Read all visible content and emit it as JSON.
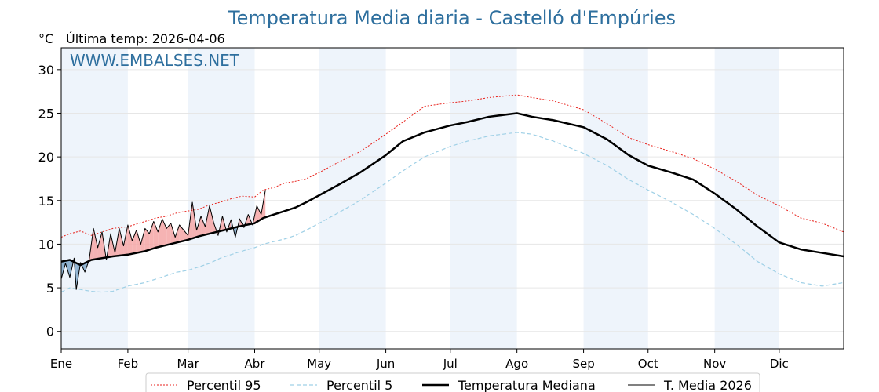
{
  "title": "Temperatura Media diaria - Castelló d'Empúries",
  "unit_label": "°C",
  "last_temp_label": "Última temp: 2026-04-06",
  "watermark": "WWW.EMBALSES.NET",
  "colors": {
    "title": "#2e6f9e",
    "p95": "#e8221c",
    "p5": "#9fd0e6",
    "median": "#000000",
    "current": "#000000",
    "above_fill": "#f4a6a6",
    "below_fill": "#7ea7c9",
    "month_band": "#eef4fb"
  },
  "chart_data": {
    "type": "line",
    "title": "Temperatura Media diaria - Castelló d'Empúries",
    "ylabel": "°C",
    "xlim": [
      1,
      365
    ],
    "ylim": [
      -2,
      32.5
    ],
    "yticks": [
      0,
      5,
      10,
      15,
      20,
      25,
      30
    ],
    "grid": true,
    "months": [
      {
        "label": "Ene",
        "day": 1
      },
      {
        "label": "Feb",
        "day": 32
      },
      {
        "label": "Mar",
        "day": 60
      },
      {
        "label": "Abr",
        "day": 91
      },
      {
        "label": "May",
        "day": 121
      },
      {
        "label": "Jun",
        "day": 152
      },
      {
        "label": "Jul",
        "day": 182
      },
      {
        "label": "Ago",
        "day": 213
      },
      {
        "label": "Sep",
        "day": 244
      },
      {
        "label": "Oct",
        "day": 274
      },
      {
        "label": "Nov",
        "day": 305
      },
      {
        "label": "Dic",
        "day": 335
      }
    ],
    "legend_position": "bottom-center",
    "series": [
      {
        "name": "Percentil 95",
        "style": "dotted",
        "x": [
          1,
          5,
          10,
          15,
          20,
          25,
          32,
          40,
          45,
          50,
          55,
          60,
          65,
          70,
          75,
          80,
          85,
          91,
          95,
          100,
          105,
          110,
          115,
          121,
          130,
          140,
          152,
          160,
          170,
          182,
          190,
          200,
          213,
          220,
          230,
          244,
          255,
          265,
          274,
          285,
          295,
          305,
          315,
          325,
          335,
          345,
          355,
          365
        ],
        "y": [
          10.8,
          11.2,
          11.5,
          11.0,
          11.4,
          11.8,
          12.0,
          12.6,
          13.0,
          13.2,
          13.6,
          13.8,
          14.0,
          14.5,
          14.8,
          15.2,
          15.5,
          15.4,
          16.2,
          16.5,
          17.0,
          17.2,
          17.5,
          18.2,
          19.4,
          20.6,
          22.6,
          24.0,
          25.8,
          26.2,
          26.4,
          26.8,
          27.1,
          26.8,
          26.4,
          25.4,
          23.8,
          22.2,
          21.4,
          20.6,
          19.8,
          18.6,
          17.2,
          15.6,
          14.4,
          13.0,
          12.4,
          11.4
        ]
      },
      {
        "name": "Percentil 5",
        "style": "dashed",
        "x": [
          1,
          5,
          10,
          15,
          20,
          25,
          32,
          40,
          45,
          50,
          55,
          60,
          65,
          70,
          75,
          80,
          85,
          91,
          95,
          100,
          105,
          110,
          115,
          121,
          130,
          140,
          152,
          160,
          170,
          182,
          190,
          200,
          213,
          220,
          230,
          244,
          255,
          265,
          274,
          285,
          295,
          305,
          315,
          325,
          335,
          345,
          355,
          365
        ],
        "y": [
          4.5,
          5.0,
          4.8,
          4.6,
          4.5,
          4.6,
          5.2,
          5.6,
          6.0,
          6.4,
          6.8,
          7.0,
          7.4,
          7.8,
          8.4,
          8.8,
          9.2,
          9.6,
          10.0,
          10.3,
          10.6,
          11.0,
          11.6,
          12.4,
          13.6,
          15.0,
          17.0,
          18.4,
          20.0,
          21.2,
          21.8,
          22.4,
          22.8,
          22.6,
          21.8,
          20.4,
          19.0,
          17.4,
          16.2,
          14.8,
          13.4,
          11.8,
          10.0,
          8.0,
          6.6,
          5.6,
          5.2,
          5.6
        ]
      },
      {
        "name": "Temperatura Mediana",
        "style": "solid-thick",
        "x": [
          1,
          5,
          10,
          15,
          20,
          25,
          32,
          40,
          45,
          50,
          55,
          60,
          65,
          70,
          75,
          80,
          85,
          91,
          95,
          100,
          105,
          110,
          115,
          121,
          130,
          140,
          152,
          160,
          170,
          182,
          190,
          200,
          213,
          220,
          230,
          244,
          255,
          265,
          274,
          285,
          295,
          305,
          315,
          325,
          335,
          345,
          355,
          365
        ],
        "y": [
          8.0,
          8.2,
          7.6,
          8.2,
          8.4,
          8.6,
          8.8,
          9.2,
          9.6,
          9.9,
          10.2,
          10.5,
          10.9,
          11.2,
          11.5,
          11.8,
          12.1,
          12.4,
          13.0,
          13.4,
          13.8,
          14.2,
          14.8,
          15.6,
          16.8,
          18.2,
          20.2,
          21.8,
          22.8,
          23.6,
          24.0,
          24.6,
          25.0,
          24.6,
          24.2,
          23.4,
          22.0,
          20.2,
          19.0,
          18.2,
          17.4,
          15.8,
          14.0,
          12.0,
          10.2,
          9.4,
          9.0,
          8.6
        ]
      },
      {
        "name": "T. Media 2026",
        "style": "solid-thin",
        "x": [
          1,
          3,
          5,
          7,
          8,
          10,
          12,
          14,
          16,
          18,
          20,
          22,
          24,
          26,
          28,
          30,
          32,
          34,
          36,
          38,
          40,
          42,
          44,
          46,
          48,
          50,
          52,
          54,
          56,
          58,
          60,
          62,
          64,
          66,
          68,
          70,
          72,
          74,
          76,
          78,
          80,
          82,
          84,
          86,
          88,
          90,
          92,
          94,
          96
        ],
        "y": [
          6.0,
          7.8,
          6.2,
          8.4,
          4.8,
          7.9,
          6.8,
          8.2,
          11.8,
          9.6,
          11.4,
          8.2,
          11.2,
          9.0,
          11.8,
          9.8,
          12.2,
          10.4,
          11.6,
          10.0,
          11.8,
          11.2,
          12.6,
          11.4,
          12.9,
          11.8,
          12.4,
          10.8,
          12.2,
          11.6,
          11.0,
          14.8,
          11.6,
          13.2,
          12.0,
          14.4,
          12.4,
          11.0,
          13.2,
          11.4,
          12.8,
          10.8,
          12.9,
          11.9,
          13.4,
          12.2,
          14.4,
          13.4,
          16.2
        ]
      }
    ],
    "legend": [
      "Percentil 95",
      "Percentil 5",
      "Temperatura Mediana",
      "T. Media 2026"
    ]
  }
}
